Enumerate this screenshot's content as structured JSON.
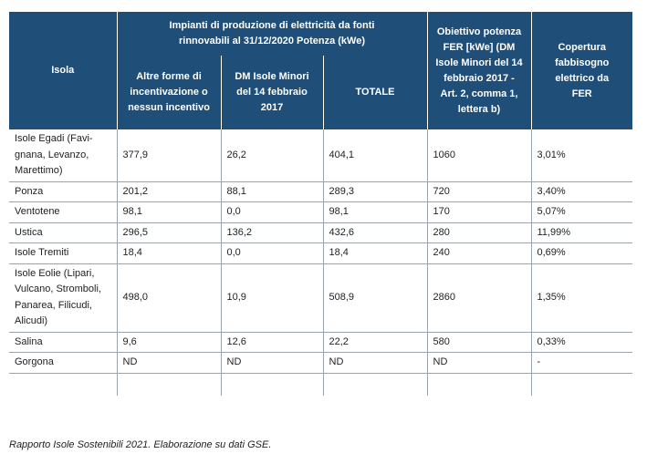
{
  "table": {
    "headers": {
      "isola": "Isola",
      "group": "Impianti di produzione di elettricità da fonti rinnovabili al 31/12/2020 Potenza (kWe)",
      "altre": "Altre forme di incentivazione o nessun incentivo",
      "dm": "DM Isole Minori del 14 febbraio 2017",
      "totale": "TOTALE",
      "obiettivo": "Obiettivo potenza FER [kWe] (DM Isole Minori del 14 febbraio 2017 - Art. 2, comma 1, lettera b)",
      "copertura": "Copertura fabbisogno elettrico da FER"
    },
    "rows": [
      {
        "isola": "Isole Egadi (Favi-gnana, Levanzo, Marettimo)",
        "altre": "377,9",
        "dm": "26,2",
        "totale": "404,1",
        "obiettivo": "1060",
        "copertura": "3,01%"
      },
      {
        "isola": "Ponza",
        "altre": "201,2",
        "dm": "88,1",
        "totale": "289,3",
        "obiettivo": "720",
        "copertura": "3,40%"
      },
      {
        "isola": "Ventotene",
        "altre": "98,1",
        "dm": "0,0",
        "totale": "98,1",
        "obiettivo": "170",
        "copertura": "5,07%"
      },
      {
        "isola": "Ustica",
        "altre": "296,5",
        "dm": "136,2",
        "totale": "432,6",
        "obiettivo": "280",
        "copertura": "11,99%"
      },
      {
        "isola": "Isole Tremiti",
        "altre": "18,4",
        "dm": "0,0",
        "totale": "18,4",
        "obiettivo": "240",
        "copertura": "0,69%"
      },
      {
        "isola": "Isole Eolie (Lipari, Vulcano, Stromboli, Panarea, Filicudi, Alicudi)",
        "altre": "498,0",
        "dm": "10,9",
        "totale": "508,9",
        "obiettivo": "2860",
        "copertura": "1,35%"
      },
      {
        "isola": "Salina",
        "altre": "9,6",
        "dm": "12,6",
        "totale": "22,2",
        "obiettivo": "580",
        "copertura": "0,33%"
      },
      {
        "isola": "Gorgona",
        "altre": "ND",
        "dm": "ND",
        "totale": "ND",
        "obiettivo": "ND",
        "copertura": "-"
      }
    ]
  },
  "caption": "Rapporto Isole Sostenibili 2021. Elaborazione su dati GSE."
}
